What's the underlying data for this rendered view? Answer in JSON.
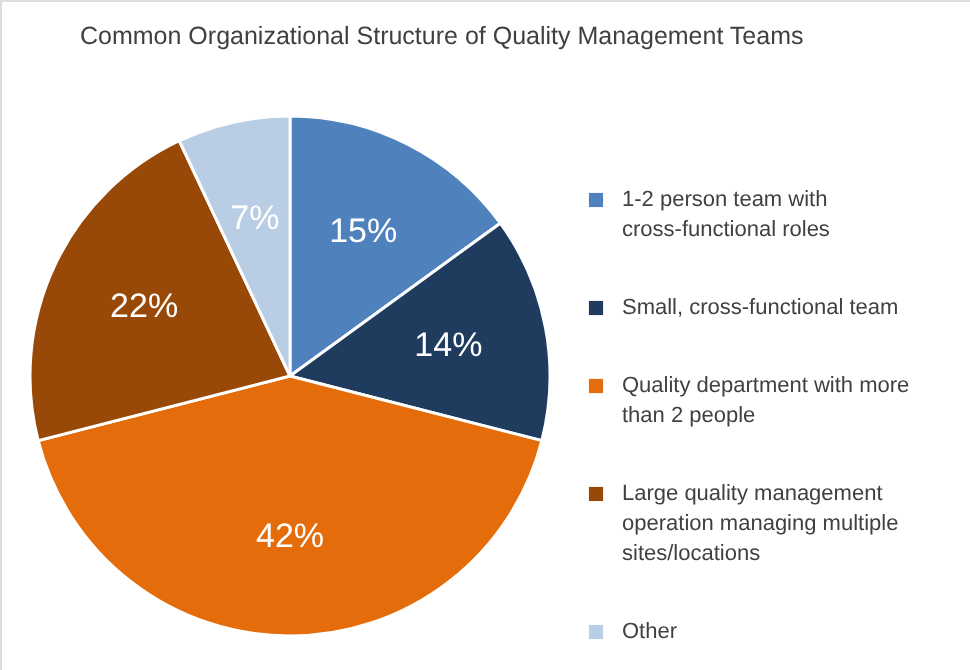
{
  "chart_data": {
    "type": "pie",
    "title": "Common Organizational Structure of Quality Management Teams",
    "categories": [
      "1-2 person team with cross-functional roles",
      "Small, cross-functional team",
      "Quality department with more than 2 people",
      "Large quality management operation managing multiple sites/locations",
      "Other"
    ],
    "values": [
      15,
      14,
      42,
      22,
      7
    ],
    "value_labels": [
      "15%",
      "14%",
      "42%",
      "22%",
      "7%"
    ],
    "colors": [
      "#4f81bd",
      "#1f3b5e",
      "#e46c0a",
      "#984807",
      "#b9cde5"
    ],
    "legend": "right"
  }
}
